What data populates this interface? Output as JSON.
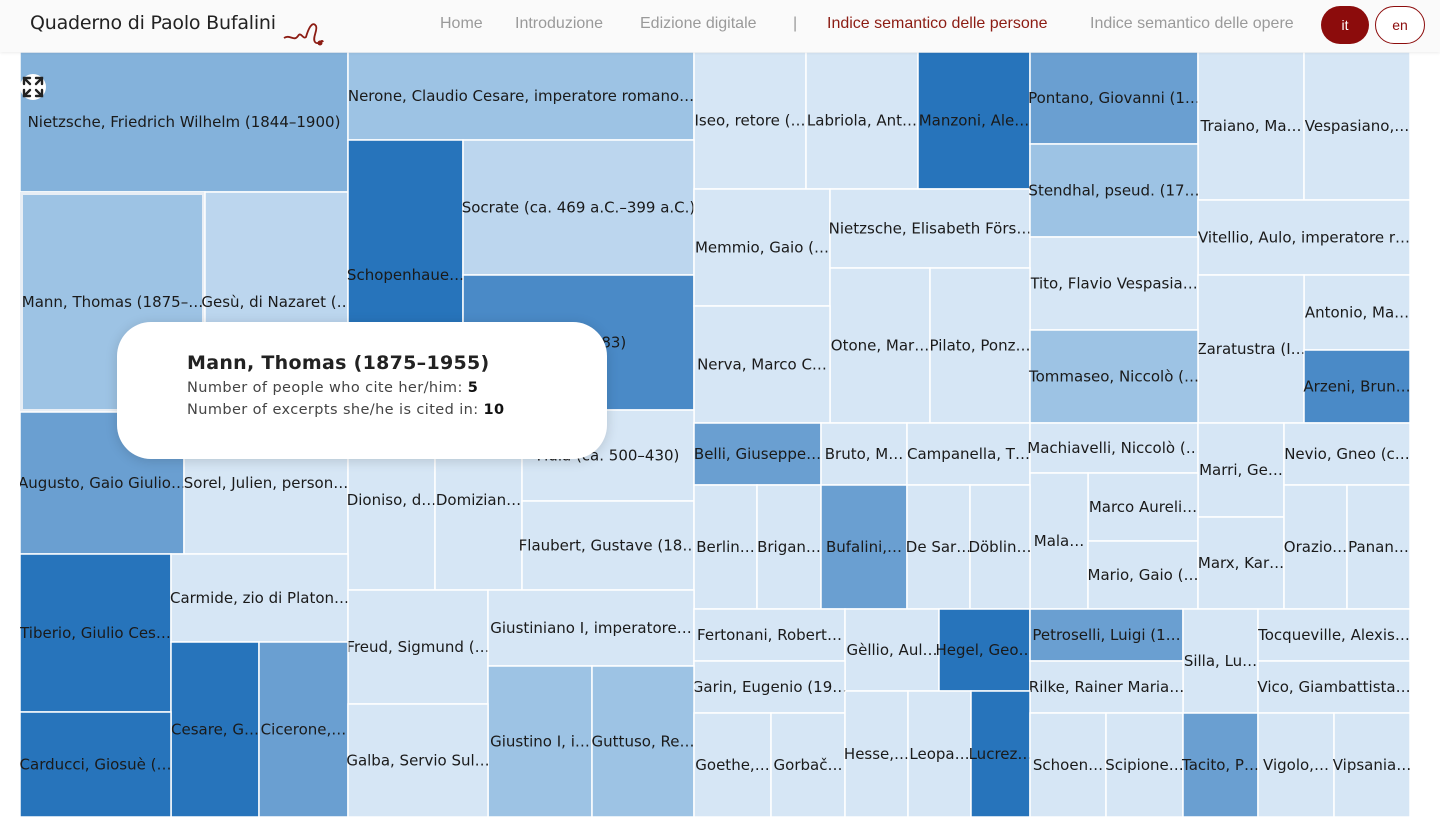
{
  "header": {
    "logo_text": "Quaderno di Paolo Bufalini",
    "nav": [
      {
        "label": "Home"
      },
      {
        "label": "Introduzione"
      },
      {
        "label": "Edizione digitale"
      },
      {
        "label": "|"
      },
      {
        "label": "Indice semantico delle persone",
        "active": true
      },
      {
        "label": "Indice semantico delle opere"
      }
    ],
    "lang": {
      "it": "it",
      "en": "en"
    }
  },
  "tooltip": {
    "title": "Mann, Thomas (1875–1955)",
    "people_label": "Number of people who cite her/him:",
    "people_value": "5",
    "excerpts_label": "Number of excerpts she/he is cited in:",
    "excerpts_value": "10"
  },
  "colors": {
    "c1": "#d6e6f5",
    "c2": "#bcd6ee",
    "c3": "#9dc3e4",
    "c4": "#84b2db",
    "c5": "#6a9fd1",
    "c6": "#4a8ac7",
    "c7": "#2774bb",
    "accent": "#8c0c0c"
  },
  "chart_data": {
    "type": "treemap",
    "cells": [
      {
        "label": "Nietzsche, Friedrich Wilhelm (1844–1900)",
        "shade": 4
      },
      {
        "label": "Nerone, Claudio Cesare, imperatore romano…",
        "shade": 3
      },
      {
        "label": "Iseo, retore (…",
        "shade": 1
      },
      {
        "label": "Labriola, Ant…",
        "shade": 1
      },
      {
        "label": "Manzoni, Ale…",
        "shade": 7
      },
      {
        "label": "Pontano, Giovanni (1…",
        "shade": 5
      },
      {
        "label": "Traiano, Ma…",
        "shade": 1
      },
      {
        "label": "Vespasiano,…",
        "shade": 1
      },
      {
        "label": "Mann, Thomas (1875–…",
        "shade": 3
      },
      {
        "label": "Gesù, di Nazaret (…",
        "shade": 2
      },
      {
        "label": "Schopenhaue…",
        "shade": 7
      },
      {
        "label": "Socrate (ca. 469 a.C.–399 a.C.)",
        "shade": 2
      },
      {
        "label": "(1813–1883)",
        "shade": 6
      },
      {
        "label": "Memmio, Gaio (…",
        "shade": 1
      },
      {
        "label": "Nietzsche, Elisabeth Förs…",
        "shade": 1
      },
      {
        "label": "Stendhal, pseud. (17…",
        "shade": 3
      },
      {
        "label": "Vitellio, Aulo, imperatore r…",
        "shade": 1
      },
      {
        "label": "Tito, Flavio Vespasia…",
        "shade": 1
      },
      {
        "label": "Antonio, Ma…",
        "shade": 1
      },
      {
        "label": "Otone, Mar…",
        "shade": 1
      },
      {
        "label": "Pilato, Ponz…",
        "shade": 1
      },
      {
        "label": "Nerva, Marco C…",
        "shade": 1
      },
      {
        "label": "Zaratustra (I…",
        "shade": 1
      },
      {
        "label": "Tommaseo, Niccolò (…",
        "shade": 3
      },
      {
        "label": "Arzeni, Brun…",
        "shade": 6
      },
      {
        "label": "Augusto, Gaio Giulio…",
        "shade": 5
      },
      {
        "label": "Sorel, Julien, person…",
        "shade": 1
      },
      {
        "label": "Dioniso, d…",
        "shade": 1
      },
      {
        "label": "Domizian…",
        "shade": 1
      },
      {
        "label": "Fidia (ca. 500–430)",
        "shade": 1
      },
      {
        "label": "Flaubert, Gustave (18…",
        "shade": 1
      },
      {
        "label": "Belli, Giuseppe…",
        "shade": 5
      },
      {
        "label": "Bruto, M…",
        "shade": 1
      },
      {
        "label": "Campanella, T…",
        "shade": 1
      },
      {
        "label": "Machiavelli, Niccolò (…",
        "shade": 1
      },
      {
        "label": "Marri, Ge…",
        "shade": 1
      },
      {
        "label": "Nevio, Gneo (c…",
        "shade": 1
      },
      {
        "label": "Marco Aureli…",
        "shade": 1
      },
      {
        "label": "Mala…",
        "shade": 1
      },
      {
        "label": "Berlin…",
        "shade": 1
      },
      {
        "label": "Brigan…",
        "shade": 1
      },
      {
        "label": "Bufalini,…",
        "shade": 5
      },
      {
        "label": "De Sar…",
        "shade": 1
      },
      {
        "label": "Döblin…",
        "shade": 1
      },
      {
        "label": "Mario, Gaio (…",
        "shade": 1
      },
      {
        "label": "Marx, Kar…",
        "shade": 1
      },
      {
        "label": "Orazio…",
        "shade": 1
      },
      {
        "label": "Panan…",
        "shade": 1
      },
      {
        "label": "Tiberio, Giulio Ces…",
        "shade": 7
      },
      {
        "label": "Carmide, zio di Platon…",
        "shade": 1
      },
      {
        "label": "Freud, Sigmund (…",
        "shade": 1
      },
      {
        "label": "Giustiniano I, imperatore…",
        "shade": 1
      },
      {
        "label": "Fertonani, Robert…",
        "shade": 1
      },
      {
        "label": "Gèllio, Aul…",
        "shade": 1
      },
      {
        "label": "Hegel, Geo…",
        "shade": 7
      },
      {
        "label": "Petroselli, Luigi (1…",
        "shade": 5
      },
      {
        "label": "Silla, Lu…",
        "shade": 1
      },
      {
        "label": "Tocqueville, Alexis…",
        "shade": 1
      },
      {
        "label": "Garin, Eugenio (19…",
        "shade": 1
      },
      {
        "label": "Rilke, Rainer Maria…",
        "shade": 1
      },
      {
        "label": "Vico, Giambattista…",
        "shade": 1
      },
      {
        "label": "Cesare, G…",
        "shade": 7
      },
      {
        "label": "Cicerone,…",
        "shade": 5
      },
      {
        "label": "Giustino I, i…",
        "shade": 3
      },
      {
        "label": "Guttuso, Re…",
        "shade": 3
      },
      {
        "label": "Galba, Servio Sul…",
        "shade": 1
      },
      {
        "label": "Goethe,…",
        "shade": 1
      },
      {
        "label": "Gorbač…",
        "shade": 1
      },
      {
        "label": "Hesse,…",
        "shade": 1
      },
      {
        "label": "Leopa…",
        "shade": 1
      },
      {
        "label": "Lucrez…",
        "shade": 7
      },
      {
        "label": "Carducci, Giosuè (…",
        "shade": 7
      },
      {
        "label": "Schoen…",
        "shade": 1
      },
      {
        "label": "Scipione…",
        "shade": 1
      },
      {
        "label": "Tacito, P…",
        "shade": 5
      },
      {
        "label": "Vigolo,…",
        "shade": 1
      },
      {
        "label": "Vipsania…",
        "shade": 1
      }
    ]
  }
}
